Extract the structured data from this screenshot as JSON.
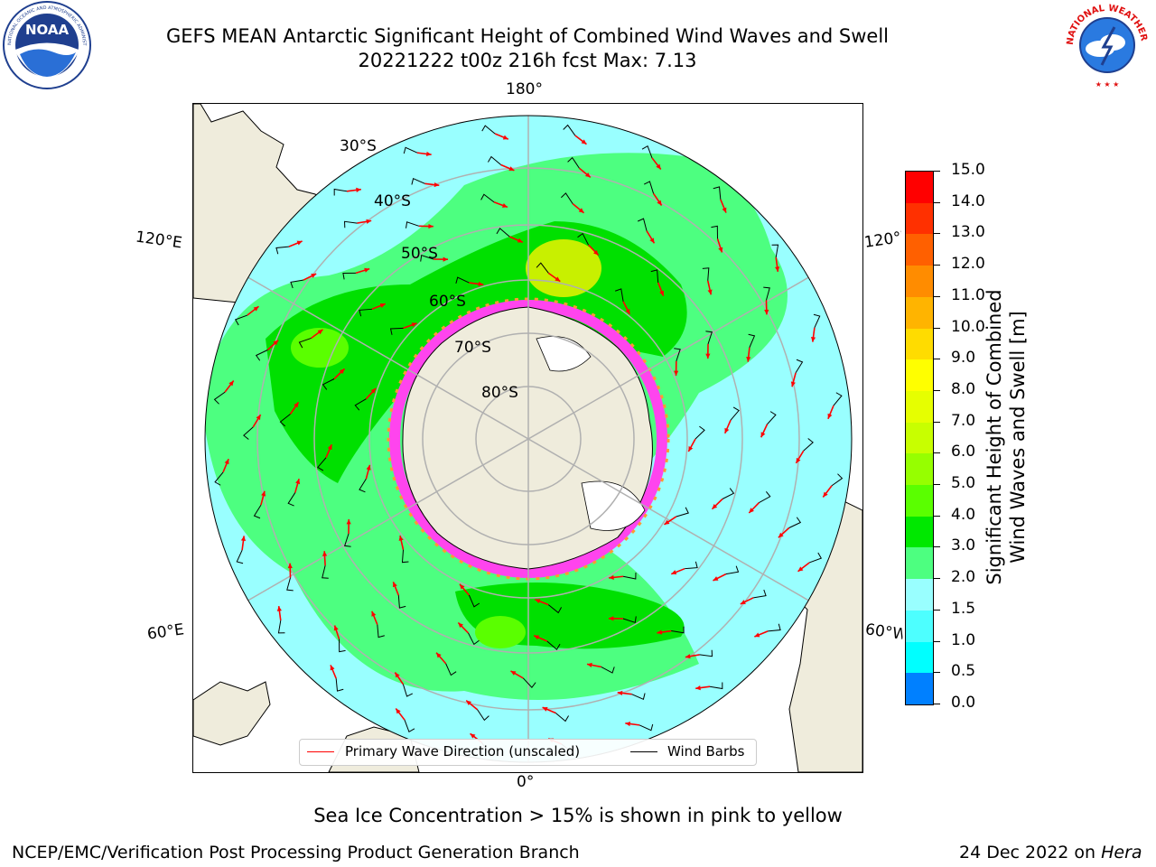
{
  "title": {
    "line1": "GEFS MEAN Antarctic Significant Height of Combined Wind Waves and Swell",
    "line2": "20221222 t00z 216h fcst   Max: 7.13"
  },
  "logos": {
    "left_icon": "noaa-logo",
    "right_icon": "nws-logo",
    "left_text": "NOAA",
    "left_ring": "NATIONAL OCEANIC AND ATMOSPHERIC ADMINISTRATION · U.S. DEPARTMENT OF COMMERCE",
    "right_ring": "NATIONAL WEATHER SERVICE"
  },
  "map": {
    "longitude_labels": {
      "top": "180°",
      "bottom": "0°",
      "upper_left": "120°E",
      "upper_right": "120°W",
      "lower_left": "60°E",
      "lower_right": "60°W"
    },
    "latitude_labels": [
      "30°S",
      "40°S",
      "50°S",
      "60°S",
      "70°S",
      "80°S"
    ],
    "colors": {
      "land": "#efecdc",
      "ocean_low": "#99ffff",
      "ocean_mid": "#4dff80",
      "ocean_high": "#00e000",
      "peak": "#c8f000",
      "ice": "#ff44ee",
      "graticule": "#b0b0b0"
    }
  },
  "colorbar": {
    "ticks": [
      "15.0",
      "14.0",
      "13.0",
      "12.0",
      "11.0",
      "10.0",
      "9.0",
      "8.0",
      "7.0",
      "6.0",
      "5.0",
      "4.0",
      "3.0",
      "2.0",
      "1.5",
      "1.0",
      "0.5",
      "0.0"
    ],
    "colors_top_to_bottom": [
      "#ff0000",
      "#ff3000",
      "#ff6000",
      "#ff8c00",
      "#ffb400",
      "#ffdc00",
      "#ffff00",
      "#e6ff00",
      "#c8ff00",
      "#96ff00",
      "#5aff00",
      "#00e800",
      "#4dff80",
      "#99ffff",
      "#4dffff",
      "#00ffff",
      "#0080ff",
      "#0000ff"
    ],
    "title_line1": "Significant Height of Combined",
    "title_line2": "Wind Waves and Swell [m]"
  },
  "legend": {
    "wave_label": "Primary Wave Direction (unscaled)",
    "barb_label": "Wind Barbs",
    "wave_color": "#ff0000",
    "barb_color": "#000000"
  },
  "notes": {
    "sea_ice": "Sea Ice Concentration > 15% is shown in pink to yellow",
    "branch": "NCEP/EMC/Verification Post Processing Product Generation Branch",
    "date": "24 Dec 2022 on ",
    "host": "Hera"
  }
}
